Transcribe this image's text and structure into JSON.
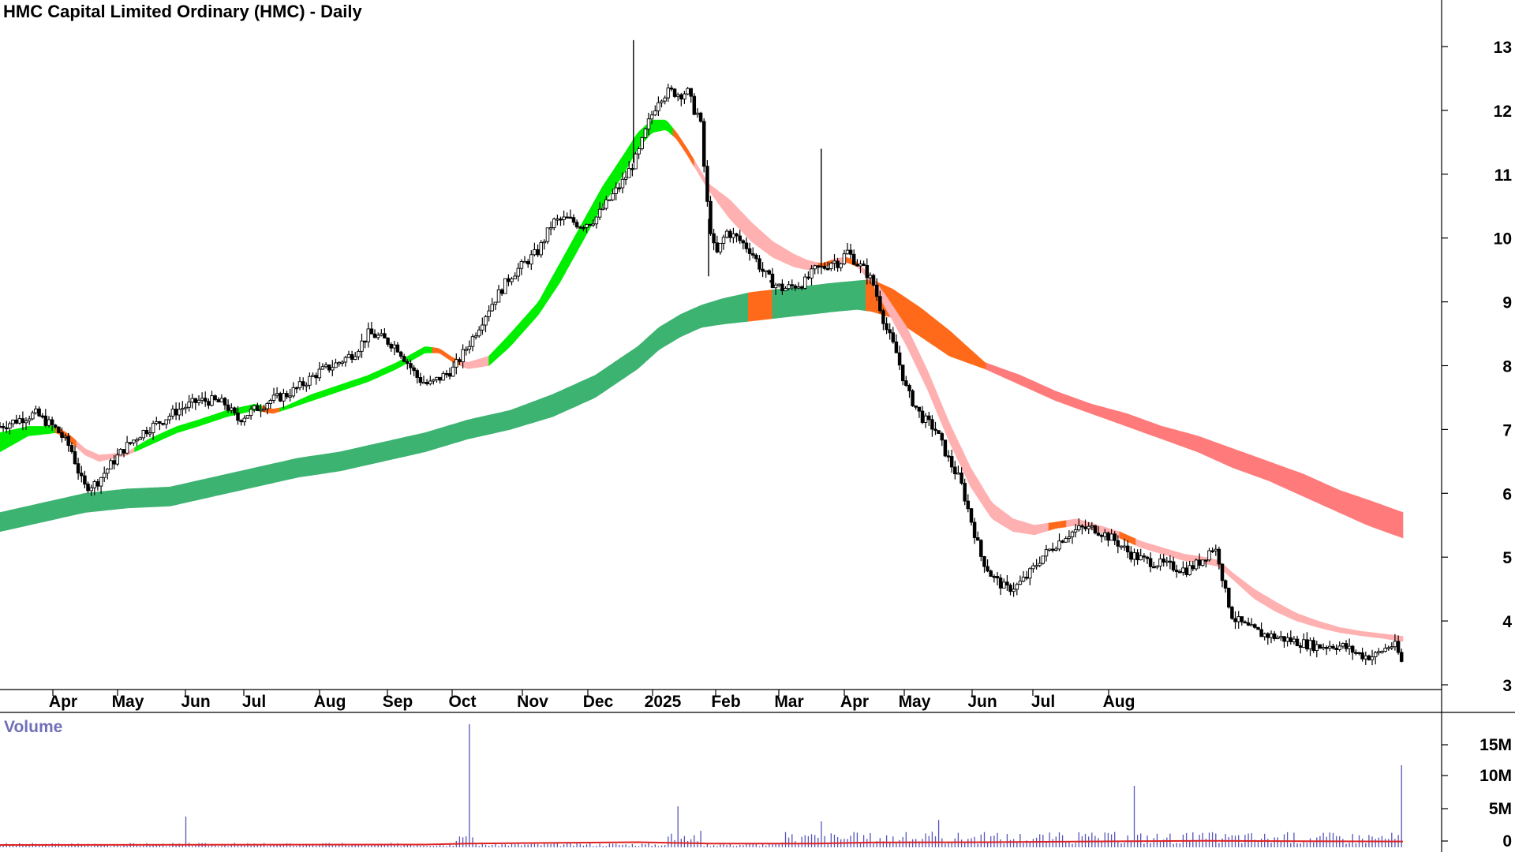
{
  "chart_data": {
    "type": "candlestick",
    "title": "HMC Capital Limited Ordinary (HMC) - Daily",
    "price_axis": {
      "ticks": [
        3,
        4,
        5,
        6,
        7,
        8,
        9,
        10,
        11,
        12,
        13
      ],
      "range": [
        2.9,
        13.5
      ]
    },
    "x_labels": [
      "Apr",
      "May",
      "Jun",
      "Jul",
      "Aug",
      "Sep",
      "Oct",
      "Nov",
      "Dec",
      "2025",
      "Feb",
      "Mar",
      "Apr",
      "May",
      "Jun",
      "Jul",
      "Aug"
    ],
    "price_path": [
      [
        0,
        7.05
      ],
      [
        50,
        7.25
      ],
      [
        80,
        7.0
      ],
      [
        100,
        6.7
      ],
      [
        118,
        6.1
      ],
      [
        135,
        6.15
      ],
      [
        160,
        6.5
      ],
      [
        175,
        6.7
      ],
      [
        200,
        6.95
      ],
      [
        230,
        7.15
      ],
      [
        250,
        7.3
      ],
      [
        280,
        7.45
      ],
      [
        300,
        7.45
      ],
      [
        318,
        7.4
      ],
      [
        335,
        7.15
      ],
      [
        350,
        7.25
      ],
      [
        380,
        7.45
      ],
      [
        405,
        7.55
      ],
      [
        420,
        7.65
      ],
      [
        450,
        7.9
      ],
      [
        470,
        8.0
      ],
      [
        500,
        8.2
      ],
      [
        520,
        8.5
      ],
      [
        535,
        8.45
      ],
      [
        560,
        8.3
      ],
      [
        590,
        7.8
      ],
      [
        605,
        7.7
      ],
      [
        620,
        7.8
      ],
      [
        640,
        7.95
      ],
      [
        665,
        8.4
      ],
      [
        690,
        8.9
      ],
      [
        720,
        9.4
      ],
      [
        760,
        9.8
      ],
      [
        780,
        10.25
      ],
      [
        800,
        10.3
      ],
      [
        820,
        10.2
      ],
      [
        840,
        10.3
      ],
      [
        860,
        10.6
      ],
      [
        880,
        10.9
      ],
      [
        900,
        11.3
      ],
      [
        915,
        11.8
      ],
      [
        930,
        12.2
      ],
      [
        945,
        12.3
      ],
      [
        960,
        12.25
      ],
      [
        970,
        12.3
      ],
      [
        980,
        12.0
      ],
      [
        988,
        11.9
      ],
      [
        993,
        11.2
      ],
      [
        1000,
        10.3
      ],
      [
        1010,
        9.7
      ],
      [
        1025,
        10.1
      ],
      [
        1040,
        10.0
      ],
      [
        1060,
        9.8
      ],
      [
        1075,
        9.5
      ],
      [
        1090,
        9.3
      ],
      [
        1105,
        9.2
      ],
      [
        1120,
        9.25
      ],
      [
        1135,
        9.3
      ],
      [
        1150,
        9.5
      ],
      [
        1165,
        9.55
      ],
      [
        1175,
        9.65
      ],
      [
        1185,
        9.6
      ],
      [
        1195,
        9.8
      ],
      [
        1210,
        9.6
      ],
      [
        1220,
        9.5
      ],
      [
        1232,
        9.3
      ],
      [
        1240,
        9.0
      ],
      [
        1250,
        8.6
      ],
      [
        1265,
        8.2
      ],
      [
        1280,
        7.6
      ],
      [
        1300,
        7.2
      ],
      [
        1320,
        7.0
      ],
      [
        1340,
        6.5
      ],
      [
        1355,
        6.2
      ],
      [
        1370,
        5.6
      ],
      [
        1385,
        5.0
      ],
      [
        1400,
        4.7
      ],
      [
        1420,
        4.5
      ],
      [
        1435,
        4.55
      ],
      [
        1450,
        4.7
      ],
      [
        1470,
        5.0
      ],
      [
        1490,
        5.2
      ],
      [
        1505,
        5.35
      ],
      [
        1525,
        5.45
      ],
      [
        1545,
        5.45
      ],
      [
        1560,
        5.35
      ],
      [
        1575,
        5.25
      ],
      [
        1595,
        5.05
      ],
      [
        1615,
        4.95
      ],
      [
        1635,
        4.9
      ],
      [
        1655,
        4.85
      ],
      [
        1675,
        4.8
      ],
      [
        1690,
        4.9
      ],
      [
        1700,
        5.0
      ],
      [
        1710,
        5.15
      ],
      [
        1716,
        5.1
      ],
      [
        1722,
        4.9
      ],
      [
        1728,
        4.5
      ],
      [
        1740,
        4.05
      ],
      [
        1760,
        3.9
      ],
      [
        1780,
        3.8
      ],
      [
        1800,
        3.75
      ],
      [
        1820,
        3.7
      ],
      [
        1840,
        3.65
      ],
      [
        1860,
        3.6
      ],
      [
        1880,
        3.62
      ],
      [
        1895,
        3.6
      ],
      [
        1905,
        3.55
      ],
      [
        1915,
        3.5
      ],
      [
        1925,
        3.45
      ],
      [
        1940,
        3.45
      ],
      [
        1952,
        3.55
      ],
      [
        1962,
        3.62
      ],
      [
        1970,
        3.6
      ],
      [
        1978,
        3.35
      ]
    ],
    "spikes": [
      {
        "x": 894,
        "high": 13.1
      },
      {
        "x": 1159,
        "high": 11.4
      },
      {
        "x": 1087,
        "low": 9.3
      },
      {
        "x": 1000,
        "low": 9.4
      }
    ],
    "series": [
      {
        "name": "",
        "fast_band_lower_offsets": [
          [
            0,
            0.25
          ],
          [
            20,
            0.25
          ],
          [
            40,
            0.25
          ],
          [
            60,
            0.25
          ],
          [
            80,
            0.25
          ]
        ],
        "fast_band": [
          [
            0,
            6.65,
            6.95
          ],
          [
            40,
            6.9,
            7.05
          ],
          [
            80,
            6.95,
            7.05
          ],
          [
            100,
            6.8,
            6.9
          ],
          [
            120,
            6.6,
            6.7
          ],
          [
            140,
            6.5,
            6.6
          ],
          [
            160,
            6.55,
            6.62
          ],
          [
            180,
            6.6,
            6.65
          ],
          [
            210,
            6.75,
            6.85
          ],
          [
            250,
            6.95,
            7.05
          ],
          [
            280,
            7.05,
            7.15
          ],
          [
            320,
            7.2,
            7.3
          ],
          [
            360,
            7.3,
            7.4
          ],
          [
            385,
            7.25,
            7.32
          ],
          [
            400,
            7.3,
            7.35
          ],
          [
            440,
            7.45,
            7.55
          ],
          [
            480,
            7.6,
            7.7
          ],
          [
            520,
            7.75,
            7.85
          ],
          [
            560,
            7.95,
            8.05
          ],
          [
            600,
            8.2,
            8.3
          ],
          [
            620,
            8.2,
            8.27
          ],
          [
            640,
            8.05,
            8.12
          ],
          [
            660,
            7.95,
            8.05
          ],
          [
            690,
            8.0,
            8.15
          ],
          [
            720,
            8.3,
            8.5
          ],
          [
            760,
            8.8,
            9.0
          ],
          [
            790,
            9.3,
            9.6
          ],
          [
            820,
            9.9,
            10.2
          ],
          [
            850,
            10.5,
            10.8
          ],
          [
            880,
            11.0,
            11.3
          ],
          [
            900,
            11.4,
            11.65
          ],
          [
            920,
            11.65,
            11.85
          ],
          [
            940,
            11.7,
            11.85
          ],
          [
            955,
            11.55,
            11.65
          ],
          [
            970,
            11.3,
            11.4
          ],
          [
            1000,
            10.75,
            10.85
          ],
          [
            1030,
            10.3,
            10.6
          ],
          [
            1060,
            9.95,
            10.25
          ],
          [
            1090,
            9.7,
            9.95
          ],
          [
            1120,
            9.55,
            9.75
          ],
          [
            1140,
            9.5,
            9.65
          ],
          [
            1160,
            9.55,
            9.6
          ],
          [
            1180,
            9.6,
            9.68
          ],
          [
            1195,
            9.62,
            9.7
          ],
          [
            1210,
            9.55,
            9.62
          ],
          [
            1230,
            9.3,
            9.4
          ],
          [
            1250,
            8.9,
            9.1
          ],
          [
            1280,
            8.3,
            8.6
          ],
          [
            1310,
            7.6,
            7.9
          ],
          [
            1340,
            6.8,
            7.1
          ],
          [
            1370,
            6.1,
            6.4
          ],
          [
            1400,
            5.6,
            5.85
          ],
          [
            1430,
            5.4,
            5.6
          ],
          [
            1460,
            5.35,
            5.5
          ],
          [
            1490,
            5.45,
            5.55
          ],
          [
            1520,
            5.5,
            5.6
          ],
          [
            1550,
            5.4,
            5.5
          ],
          [
            1580,
            5.3,
            5.4
          ],
          [
            1610,
            5.15,
            5.25
          ],
          [
            1640,
            5.05,
            5.15
          ],
          [
            1670,
            4.95,
            5.05
          ],
          [
            1700,
            4.9,
            5.0
          ],
          [
            1720,
            4.85,
            4.95
          ],
          [
            1740,
            4.65,
            4.75
          ],
          [
            1770,
            4.35,
            4.5
          ],
          [
            1800,
            4.15,
            4.3
          ],
          [
            1830,
            4.0,
            4.12
          ],
          [
            1860,
            3.9,
            4.0
          ],
          [
            1890,
            3.82,
            3.9
          ],
          [
            1920,
            3.77,
            3.84
          ],
          [
            1950,
            3.73,
            3.8
          ],
          [
            1980,
            3.68,
            3.76
          ]
        ],
        "fast_colors": [
          [
            0,
            78,
            "#00ee00"
          ],
          [
            78,
            108,
            "#ff6a1a"
          ],
          [
            108,
            190,
            "#ffb0b0"
          ],
          [
            190,
            370,
            "#00ee00"
          ],
          [
            370,
            395,
            "#ff6a1a"
          ],
          [
            395,
            610,
            "#00ee00"
          ],
          [
            610,
            650,
            "#ff6a1a"
          ],
          [
            650,
            690,
            "#ffb0b0"
          ],
          [
            690,
            950,
            "#00ee00"
          ],
          [
            950,
            980,
            "#ff6a1a"
          ],
          [
            980,
            1130,
            "#ffb0b0"
          ],
          [
            1130,
            1155,
            "#ffb0b0"
          ],
          [
            1155,
            1175,
            "#ff6a1a"
          ],
          [
            1175,
            1190,
            "#ffb0b0"
          ],
          [
            1190,
            1210,
            "#ff6a1a"
          ],
          [
            1210,
            1432,
            "#ffb0b0"
          ],
          [
            1432,
            1480,
            "#ffb0b0"
          ],
          [
            1480,
            1505,
            "#ff6a1a"
          ],
          [
            1505,
            1580,
            "#ffb0b0"
          ],
          [
            1580,
            1603,
            "#ff6a1a"
          ],
          [
            1603,
            1980,
            "#ffb0b0"
          ]
        ],
        "slow_band": [
          [
            0,
            5.4,
            5.7
          ],
          [
            60,
            5.55,
            5.85
          ],
          [
            120,
            5.7,
            6.0
          ],
          [
            180,
            5.77,
            6.07
          ],
          [
            240,
            5.8,
            6.1
          ],
          [
            300,
            5.95,
            6.25
          ],
          [
            360,
            6.1,
            6.4
          ],
          [
            420,
            6.25,
            6.55
          ],
          [
            480,
            6.35,
            6.65
          ],
          [
            540,
            6.5,
            6.8
          ],
          [
            600,
            6.65,
            6.95
          ],
          [
            660,
            6.85,
            7.15
          ],
          [
            720,
            7.0,
            7.3
          ],
          [
            780,
            7.2,
            7.55
          ],
          [
            840,
            7.5,
            7.85
          ],
          [
            900,
            7.95,
            8.3
          ],
          [
            930,
            8.25,
            8.6
          ],
          [
            960,
            8.45,
            8.8
          ],
          [
            990,
            8.6,
            8.95
          ],
          [
            1020,
            8.65,
            9.05
          ],
          [
            1060,
            8.7,
            9.15
          ],
          [
            1100,
            8.75,
            9.2
          ],
          [
            1140,
            8.8,
            9.25
          ],
          [
            1180,
            8.85,
            9.3
          ],
          [
            1210,
            8.88,
            9.33
          ],
          [
            1230,
            8.85,
            9.35
          ],
          [
            1260,
            8.75,
            9.2
          ],
          [
            1300,
            8.45,
            8.9
          ],
          [
            1340,
            8.15,
            8.55
          ],
          [
            1390,
            7.95,
            8.05
          ],
          [
            1440,
            7.7,
            7.85
          ],
          [
            1490,
            7.45,
            7.6
          ],
          [
            1540,
            7.25,
            7.4
          ],
          [
            1590,
            7.05,
            7.25
          ],
          [
            1640,
            6.85,
            7.05
          ],
          [
            1690,
            6.65,
            6.9
          ],
          [
            1740,
            6.4,
            6.7
          ],
          [
            1790,
            6.2,
            6.5
          ],
          [
            1840,
            5.95,
            6.3
          ],
          [
            1890,
            5.7,
            6.05
          ],
          [
            1930,
            5.5,
            5.9
          ],
          [
            1980,
            5.3,
            5.7
          ]
        ],
        "slow_colors": [
          [
            0,
            1056,
            "#3cb371"
          ],
          [
            1056,
            1090,
            "#ff6a1a"
          ],
          [
            1090,
            1222,
            "#3cb371"
          ],
          [
            1222,
            1392,
            "#ff6a1a"
          ],
          [
            1392,
            1980,
            "#ff7b7b"
          ]
        ]
      }
    ],
    "volume": {
      "title": "Volume",
      "ticks": [
        "15M",
        "10M",
        "5M",
        "0"
      ],
      "spikes": [
        [
          663,
          18.0
        ],
        [
          262,
          4.5
        ],
        [
          955,
          6.0
        ],
        [
          1323,
          4.0
        ],
        [
          1602,
          9.0
        ],
        [
          1980,
          12.0
        ],
        [
          1160,
          3.8
        ]
      ]
    }
  }
}
